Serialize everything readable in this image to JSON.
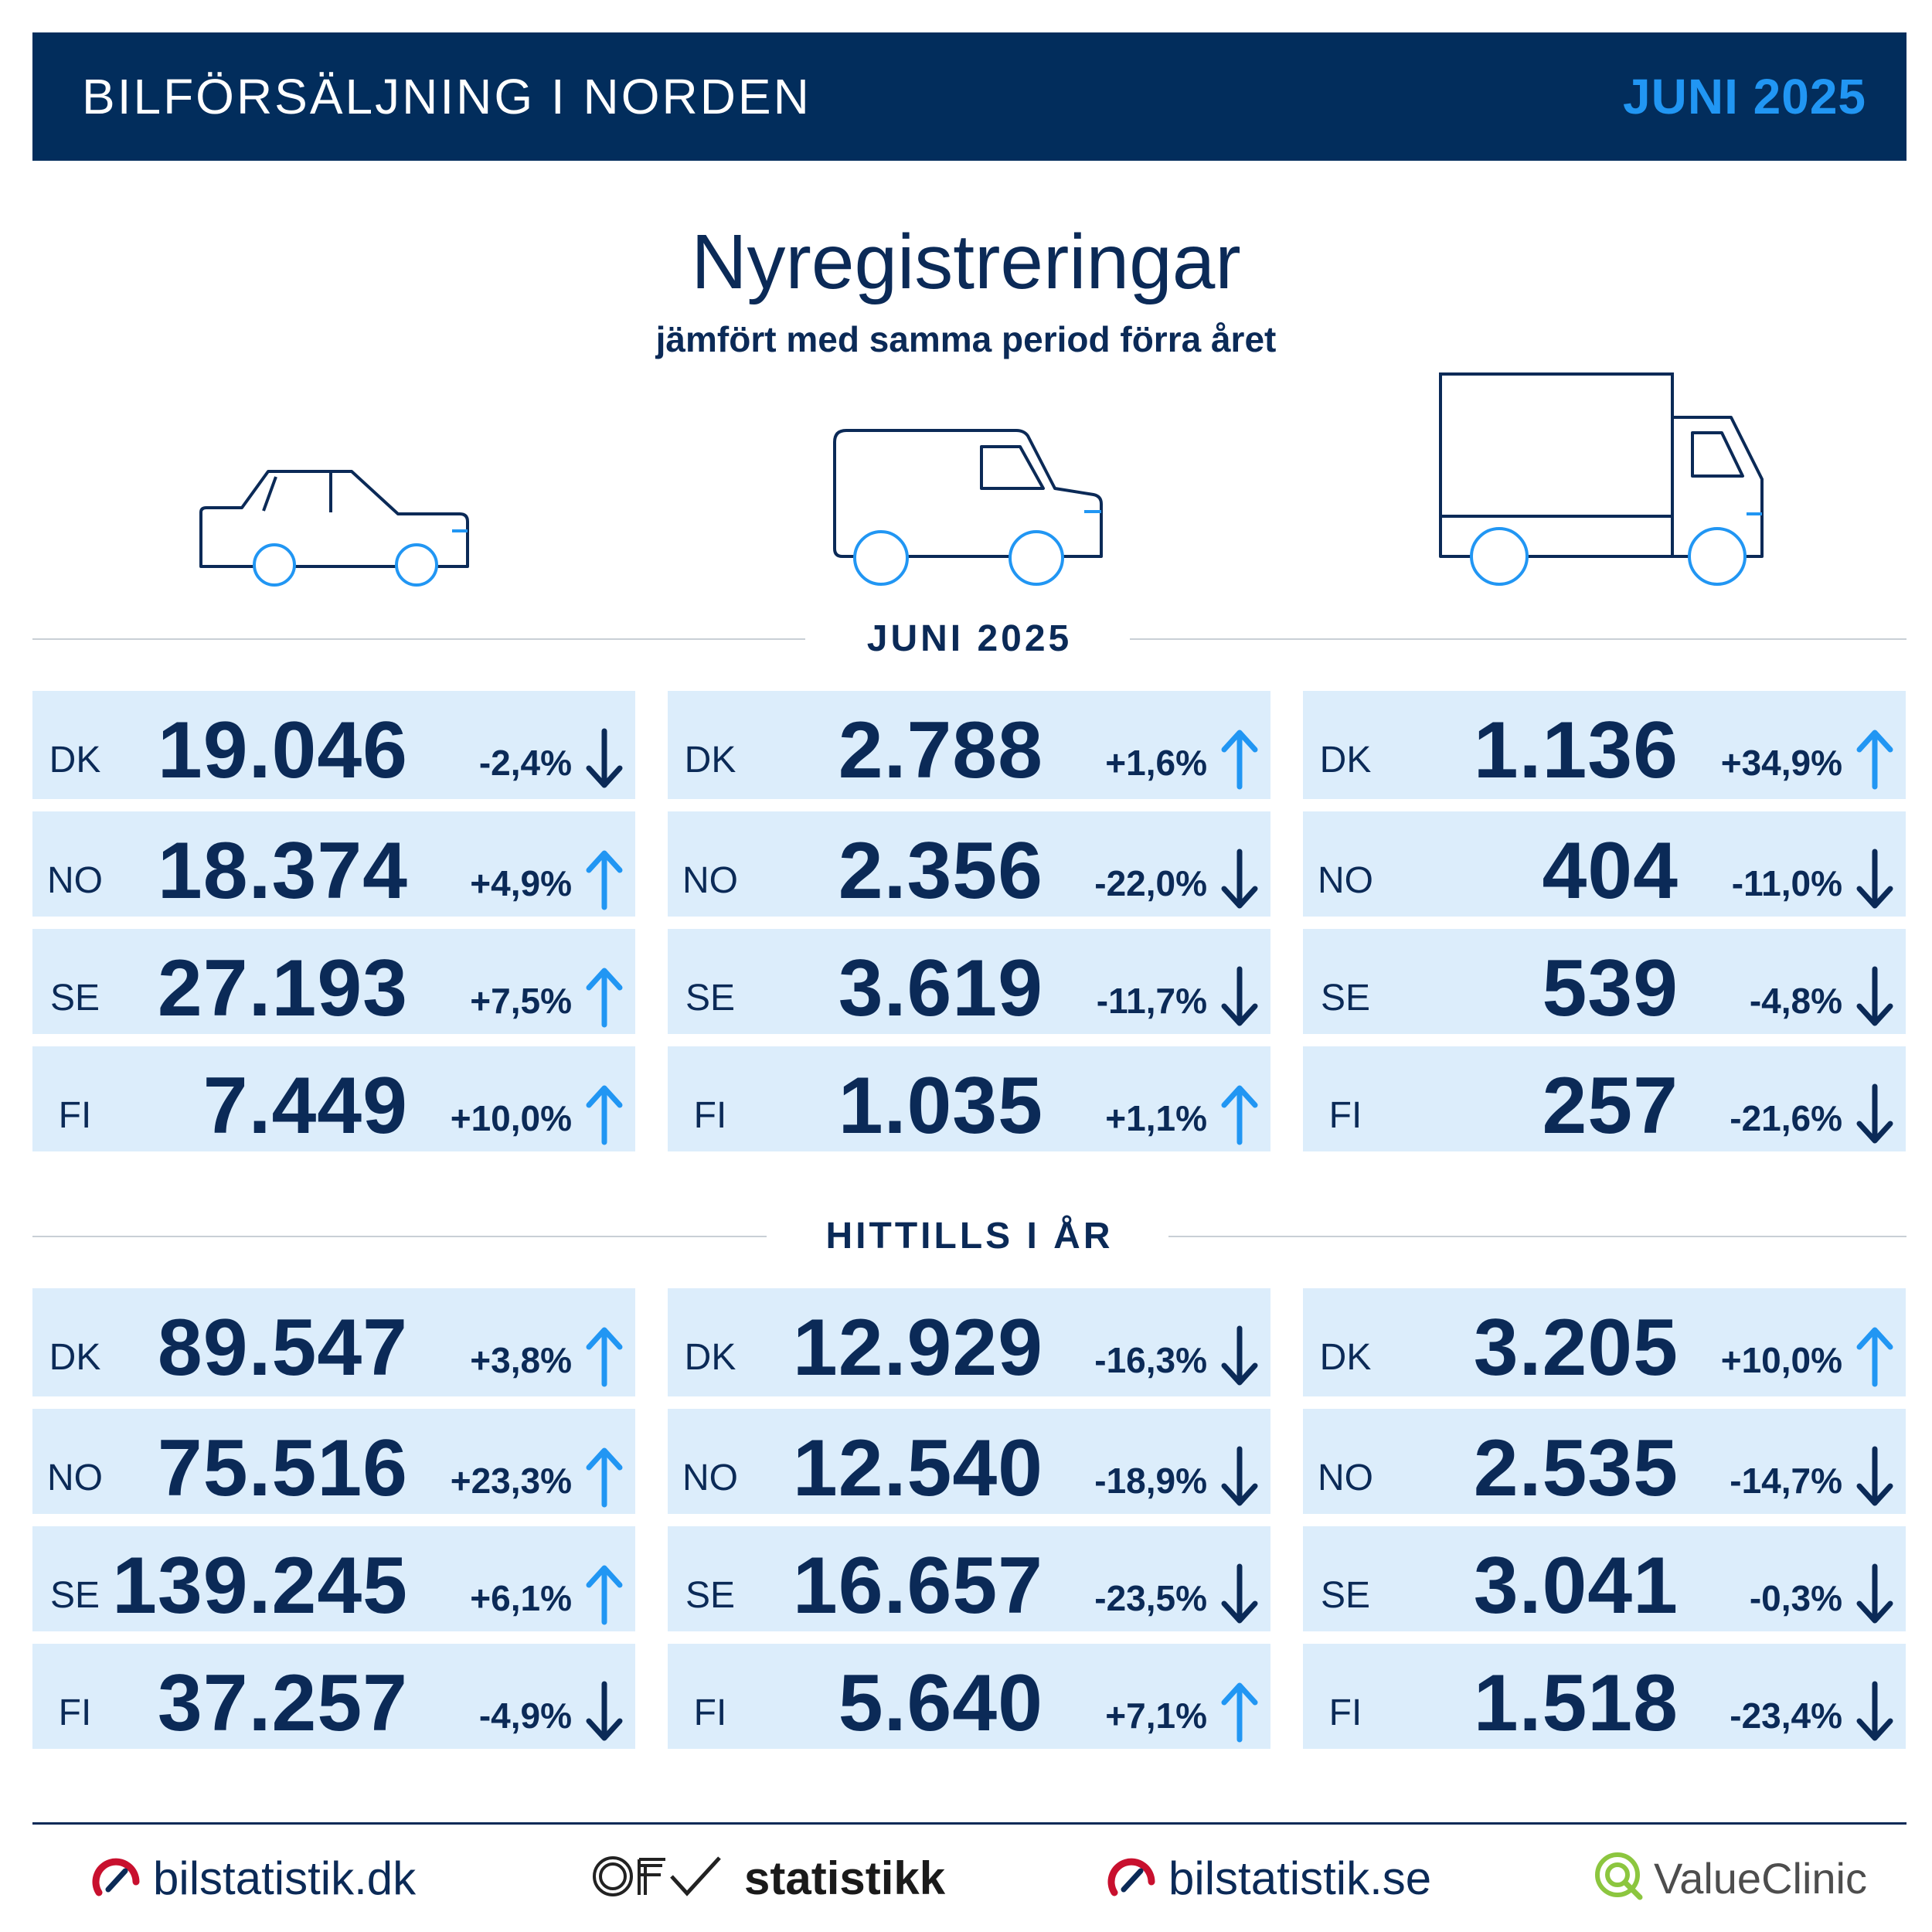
{
  "header": {
    "title": "BILFÖRSÄLJNING I NORDEN",
    "date": "JUNI 2025"
  },
  "title": "Nyregistreringar",
  "subtitle": "jämfört med samma period förra året",
  "colors": {
    "navy": "#022d5c",
    "accent": "#2196f3",
    "row_bg": "#dcedfb",
    "text": "#0b2a57"
  },
  "vehicles": [
    "car-icon",
    "van-icon",
    "truck-icon"
  ],
  "sections": [
    {
      "label": "JUNI 2025",
      "columns": [
        {
          "rows": [
            {
              "country": "DK",
              "value": "19.046",
              "change": "-2,4%",
              "dir": "down"
            },
            {
              "country": "NO",
              "value": "18.374",
              "change": "+4,9%",
              "dir": "up"
            },
            {
              "country": "SE",
              "value": "27.193",
              "change": "+7,5%",
              "dir": "up"
            },
            {
              "country": "FI",
              "value": "7.449",
              "change": "+10,0%",
              "dir": "up"
            }
          ]
        },
        {
          "rows": [
            {
              "country": "DK",
              "value": "2.788",
              "change": "+1,6%",
              "dir": "up"
            },
            {
              "country": "NO",
              "value": "2.356",
              "change": "-22,0%",
              "dir": "down"
            },
            {
              "country": "SE",
              "value": "3.619",
              "change": "-11,7%",
              "dir": "down"
            },
            {
              "country": "FI",
              "value": "1.035",
              "change": "+1,1%",
              "dir": "up"
            }
          ]
        },
        {
          "rows": [
            {
              "country": "DK",
              "value": "1.136",
              "change": "+34,9%",
              "dir": "up"
            },
            {
              "country": "NO",
              "value": "404",
              "change": "-11,0%",
              "dir": "down"
            },
            {
              "country": "SE",
              "value": "539",
              "change": "-4,8%",
              "dir": "down"
            },
            {
              "country": "FI",
              "value": "257",
              "change": "-21,6%",
              "dir": "down"
            }
          ]
        }
      ]
    },
    {
      "label": "HITTILLS I ÅR",
      "columns": [
        {
          "rows": [
            {
              "country": "DK",
              "value": "89.547",
              "change": "+3,8%",
              "dir": "up"
            },
            {
              "country": "NO",
              "value": "75.516",
              "change": "+23,3%",
              "dir": "up"
            },
            {
              "country": "SE",
              "value": "139.245",
              "change": "+6,1%",
              "dir": "up"
            },
            {
              "country": "FI",
              "value": "37.257",
              "change": "-4,9%",
              "dir": "down"
            }
          ]
        },
        {
          "rows": [
            {
              "country": "DK",
              "value": "12.929",
              "change": "-16,3%",
              "dir": "down"
            },
            {
              "country": "NO",
              "value": "12.540",
              "change": "-18,9%",
              "dir": "down"
            },
            {
              "country": "SE",
              "value": "16.657",
              "change": "-23,5%",
              "dir": "down"
            },
            {
              "country": "FI",
              "value": "5.640",
              "change": "+7,1%",
              "dir": "up"
            }
          ]
        },
        {
          "rows": [
            {
              "country": "DK",
              "value": "3.205",
              "change": "+10,0%",
              "dir": "up"
            },
            {
              "country": "NO",
              "value": "2.535",
              "change": "-14,7%",
              "dir": "down"
            },
            {
              "country": "SE",
              "value": "3.041",
              "change": "-0,3%",
              "dir": "down"
            },
            {
              "country": "FI",
              "value": "1.518",
              "change": "-23,4%",
              "dir": "down"
            }
          ]
        }
      ]
    }
  ],
  "footer": {
    "bilstatistik_dk": "bilstatistik.dk",
    "ofv_logo": "OFV",
    "statistikk": "statistikk",
    "bilstatistik_se": "bilstatistik.se",
    "valueclinic": "ValueClinic"
  }
}
